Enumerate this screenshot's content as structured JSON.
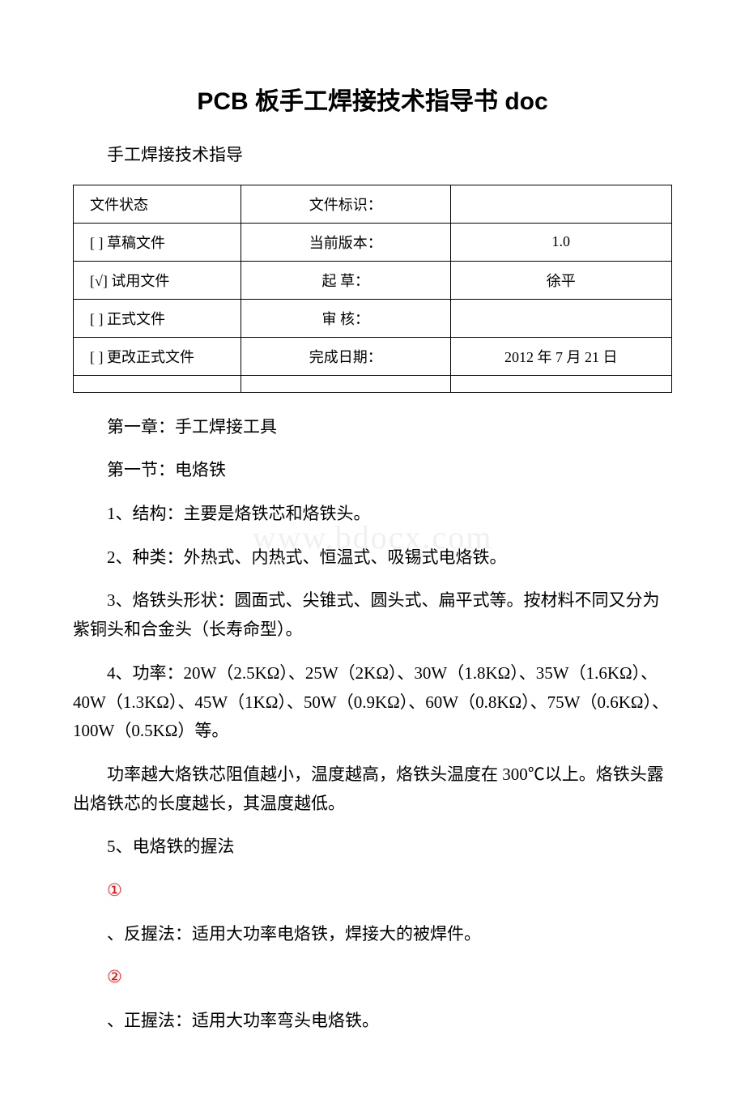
{
  "document": {
    "title": "PCB 板手工焊接技术指导书 doc",
    "subtitle": "手工焊接技术指导",
    "watermark": "www.bdocx.com"
  },
  "infoTable": {
    "rows": [
      {
        "c1": "文件状态",
        "c2": "文件标识：",
        "c3": ""
      },
      {
        "c1": "[ ] 草稿文件",
        "c2": "当前版本：",
        "c3": "1.0"
      },
      {
        "c1": "[√] 试用文件",
        "c2": "起 草：",
        "c3": "徐平"
      },
      {
        "c1": "[ ] 正式文件",
        "c2": "审 核：",
        "c3": ""
      },
      {
        "c1": "[ ] 更改正式文件",
        "c2": "完成日期：",
        "c3": "2012 年 7 月 21 日"
      },
      {
        "c1": "",
        "c2": "",
        "c3": ""
      }
    ]
  },
  "body": {
    "p1": " 第一章：手工焊接工具",
    "p2": "第一节：电烙铁",
    "p3": "1、结构：主要是烙铁芯和烙铁头。",
    "p4": "2、种类：外热式、内热式、恒温式、吸锡式电烙铁。",
    "p5": "3、烙铁头形状：圆面式、尖锥式、圆头式、扁平式等。按材料不同又分为紫铜头和合金头（长寿命型）。",
    "p6": "4、功率：20W（2.5KΩ）、25W（2KΩ）、30W（1.8KΩ）、35W（1.6KΩ）、40W（1.3KΩ）、45W（1KΩ）、50W（0.9KΩ）、60W（0.8KΩ）、75W（0.6KΩ）、100W（0.5KΩ）等。",
    "p7": "功率越大烙铁芯阻值越小，温度越高，烙铁头温度在 300℃以上。烙铁头露出烙铁芯的长度越长，其温度越低。",
    "p8": "5、电烙铁的握法",
    "circ1": "①",
    "p9": "、反握法：适用大功率电烙铁，焊接大的被焊件。",
    "circ2": "②",
    "p10": "、正握法：适用大功率弯头电烙铁。"
  },
  "style": {
    "title_color": "#000000",
    "text_color": "#000000",
    "circled_color": "#ff0000",
    "border_color": "#000000",
    "background_color": "#ffffff",
    "title_fontsize": 30,
    "body_fontsize": 21,
    "table_fontsize": 18
  }
}
